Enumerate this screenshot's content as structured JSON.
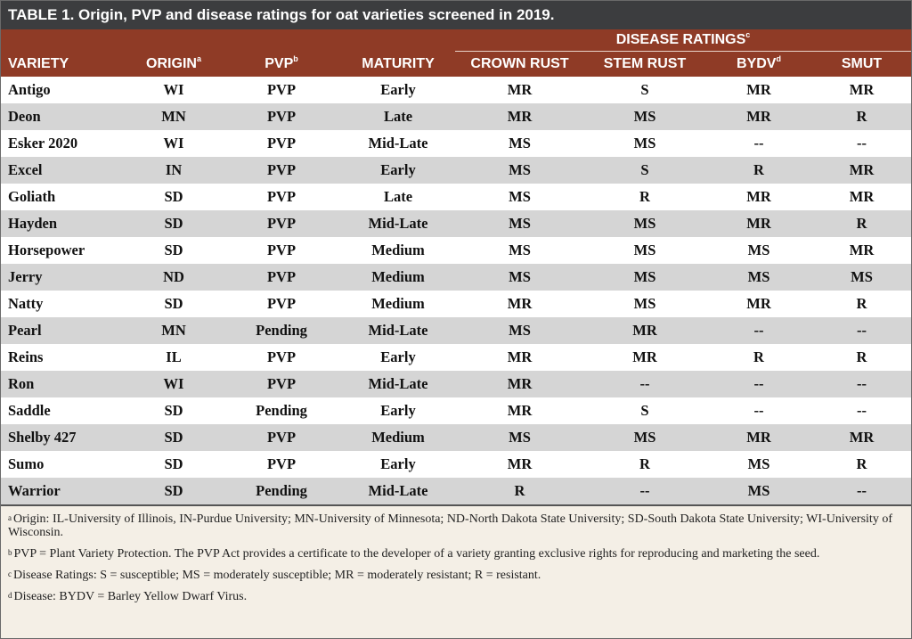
{
  "title": "TABLE 1. Origin, PVP and disease ratings for oat varieties screened in 2019.",
  "headers": {
    "group": "DISEASE RATINGS",
    "group_sup": "c",
    "variety": "VARIETY",
    "origin": "ORIGIN",
    "origin_sup": "a",
    "pvp": "PVP",
    "pvp_sup": "b",
    "maturity": "MATURITY",
    "crown_rust": "CROWN RUST",
    "stem_rust": "STEM RUST",
    "bydv": "BYDV",
    "bydv_sup": "d",
    "smut": "SMUT"
  },
  "rows": [
    {
      "variety": "Antigo",
      "origin": "WI",
      "pvp": "PVP",
      "maturity": "Early",
      "crown_rust": "MR",
      "stem_rust": "S",
      "bydv": "MR",
      "smut": "MR"
    },
    {
      "variety": "Deon",
      "origin": "MN",
      "pvp": "PVP",
      "maturity": "Late",
      "crown_rust": "MR",
      "stem_rust": "MS",
      "bydv": "MR",
      "smut": "R"
    },
    {
      "variety": "Esker 2020",
      "origin": "WI",
      "pvp": "PVP",
      "maturity": "Mid-Late",
      "crown_rust": "MS",
      "stem_rust": "MS",
      "bydv": "--",
      "smut": "--"
    },
    {
      "variety": "Excel",
      "origin": "IN",
      "pvp": "PVP",
      "maturity": "Early",
      "crown_rust": "MS",
      "stem_rust": "S",
      "bydv": "R",
      "smut": "MR"
    },
    {
      "variety": "Goliath",
      "origin": "SD",
      "pvp": "PVP",
      "maturity": "Late",
      "crown_rust": "MS",
      "stem_rust": "R",
      "bydv": "MR",
      "smut": "MR"
    },
    {
      "variety": "Hayden",
      "origin": "SD",
      "pvp": "PVP",
      "maturity": "Mid-Late",
      "crown_rust": "MS",
      "stem_rust": "MS",
      "bydv": "MR",
      "smut": "R"
    },
    {
      "variety": "Horsepower",
      "origin": "SD",
      "pvp": "PVP",
      "maturity": "Medium",
      "crown_rust": "MS",
      "stem_rust": "MS",
      "bydv": "MS",
      "smut": "MR"
    },
    {
      "variety": "Jerry",
      "origin": "ND",
      "pvp": "PVP",
      "maturity": "Medium",
      "crown_rust": "MS",
      "stem_rust": "MS",
      "bydv": "MS",
      "smut": "MS"
    },
    {
      "variety": "Natty",
      "origin": "SD",
      "pvp": "PVP",
      "maturity": "Medium",
      "crown_rust": "MR",
      "stem_rust": "MS",
      "bydv": "MR",
      "smut": "R"
    },
    {
      "variety": "Pearl",
      "origin": "MN",
      "pvp": "Pending",
      "maturity": "Mid-Late",
      "crown_rust": "MS",
      "stem_rust": "MR",
      "bydv": "--",
      "smut": "--"
    },
    {
      "variety": "Reins",
      "origin": "IL",
      "pvp": "PVP",
      "maturity": "Early",
      "crown_rust": "MR",
      "stem_rust": "MR",
      "bydv": "R",
      "smut": "R"
    },
    {
      "variety": "Ron",
      "origin": "WI",
      "pvp": "PVP",
      "maturity": "Mid-Late",
      "crown_rust": "MR",
      "stem_rust": "--",
      "bydv": "--",
      "smut": "--"
    },
    {
      "variety": "Saddle",
      "origin": "SD",
      "pvp": "Pending",
      "maturity": "Early",
      "crown_rust": "MR",
      "stem_rust": "S",
      "bydv": "--",
      "smut": "--"
    },
    {
      "variety": "Shelby 427",
      "origin": "SD",
      "pvp": "PVP",
      "maturity": "Medium",
      "crown_rust": "MS",
      "stem_rust": "MS",
      "bydv": "MR",
      "smut": "MR"
    },
    {
      "variety": "Sumo",
      "origin": "SD",
      "pvp": "PVP",
      "maturity": "Early",
      "crown_rust": "MR",
      "stem_rust": "R",
      "bydv": "MS",
      "smut": "R"
    },
    {
      "variety": "Warrior",
      "origin": "SD",
      "pvp": "Pending",
      "maturity": "Mid-Late",
      "crown_rust": "R",
      "stem_rust": "--",
      "bydv": "MS",
      "smut": "--"
    }
  ],
  "footnotes": [
    {
      "mark": "a",
      "text": "Origin:  IL-University of Illinois, IN-Purdue University; MN-University of Minnesota; ND-North Dakota State University; SD-South Dakota State University; WI-University of Wisconsin."
    },
    {
      "mark": "b",
      "text": "PVP = Plant Variety Protection. The PVP Act provides a certificate to the developer of a variety granting exclusive rights for reproducing and marketing the seed."
    },
    {
      "mark": "c",
      "text": "Disease Ratings:  S = susceptible; MS = moderately susceptible; MR = moderately resistant; R = resistant."
    },
    {
      "mark": "d",
      "text": "Disease:  BYDV = Barley Yellow Dwarf Virus."
    }
  ]
}
